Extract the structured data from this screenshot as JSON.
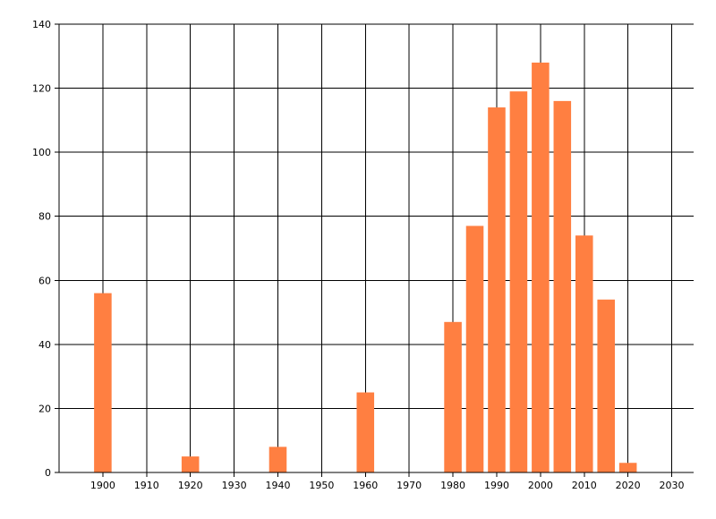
{
  "chart_data": {
    "type": "bar",
    "x": [
      1900,
      1920,
      1940,
      1960,
      1980,
      1985,
      1990,
      1995,
      2000,
      2005,
      2010,
      2015,
      2020
    ],
    "values": [
      56,
      5,
      8,
      25,
      47,
      77,
      114,
      119,
      128,
      116,
      74,
      54,
      3
    ],
    "bar_width": 4,
    "xlim": [
      1890,
      2035
    ],
    "ylim": [
      0,
      140
    ],
    "x_ticks": [
      1900,
      1910,
      1920,
      1930,
      1940,
      1950,
      1960,
      1970,
      1980,
      1990,
      2000,
      2010,
      2020,
      2030
    ],
    "y_ticks": [
      0,
      20,
      40,
      60,
      80,
      100,
      120,
      140
    ],
    "grid": true,
    "bar_color": "#FF7F41",
    "title": "",
    "xlabel": "",
    "ylabel": ""
  }
}
